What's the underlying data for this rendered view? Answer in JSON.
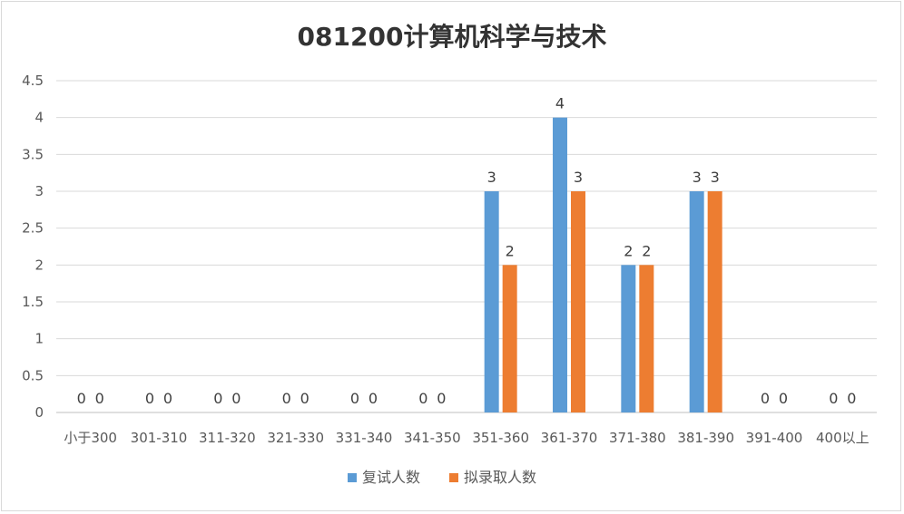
{
  "chart_data": {
    "type": "bar",
    "title": "081200计算机科学与技术",
    "xlabel": "",
    "ylabel": "",
    "categories": [
      "小于300",
      "301-310",
      "311-320",
      "321-330",
      "331-340",
      "341-350",
      "351-360",
      "361-370",
      "371-380",
      "381-390",
      "391-400",
      "400以上"
    ],
    "series": [
      {
        "name": "复试人数",
        "color": "#5b9bd5",
        "values": [
          0,
          0,
          0,
          0,
          0,
          0,
          3,
          4,
          2,
          3,
          0,
          0
        ]
      },
      {
        "name": "拟录取人数",
        "color": "#ed7d31",
        "values": [
          0,
          0,
          0,
          0,
          0,
          0,
          2,
          3,
          2,
          3,
          0,
          0
        ]
      }
    ],
    "ylim": [
      0,
      4.5
    ],
    "yticks": [
      "0",
      "0.5",
      "1",
      "1.5",
      "2",
      "2.5",
      "3",
      "3.5",
      "4",
      "4.5"
    ],
    "grid": true,
    "legend": "bottom",
    "data_labels": true
  }
}
